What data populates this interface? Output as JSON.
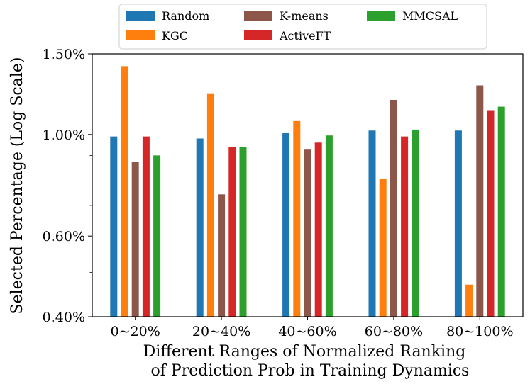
{
  "chart_data": {
    "type": "bar",
    "title": "",
    "xlabel": [
      "Different Ranges of Normalized Ranking",
      "of Prediction Prob in Training Dynamics"
    ],
    "ylabel": "Selected Percentage (Log Scale)",
    "yscale": "log",
    "ylim": [
      0.4,
      1.5
    ],
    "yticks": [
      {
        "value": 0.4,
        "label": "0.40%"
      },
      {
        "value": 0.6,
        "label": "0.60%"
      },
      {
        "value": 1.0,
        "label": "1.00%"
      },
      {
        "value": 1.5,
        "label": "1.50%"
      }
    ],
    "minor_yticks": [
      0.5,
      0.7,
      0.8,
      0.9
    ],
    "categories": [
      "0~20%",
      "20~40%",
      "40~60%",
      "60~80%",
      "80~100%"
    ],
    "series": [
      {
        "name": "Random",
        "color": "#1f77b4",
        "values": [
          0.99,
          0.98,
          1.01,
          1.02,
          1.02
        ]
      },
      {
        "name": "KGC",
        "color": "#ff7f0e",
        "values": [
          1.41,
          1.23,
          1.07,
          0.8,
          0.47
        ]
      },
      {
        "name": "K-means",
        "color": "#8c564b",
        "values": [
          0.87,
          0.74,
          0.93,
          1.19,
          1.28
        ]
      },
      {
        "name": "ActiveFT",
        "color": "#d62728",
        "values": [
          0.99,
          0.94,
          0.96,
          0.99,
          1.13
        ]
      },
      {
        "name": "MMCSAL",
        "color": "#2ca02c",
        "values": [
          0.9,
          0.94,
          0.995,
          1.025,
          1.15
        ]
      }
    ],
    "grid": false,
    "legend": {
      "placement": "top-center, above plot",
      "columns": 3
    }
  }
}
